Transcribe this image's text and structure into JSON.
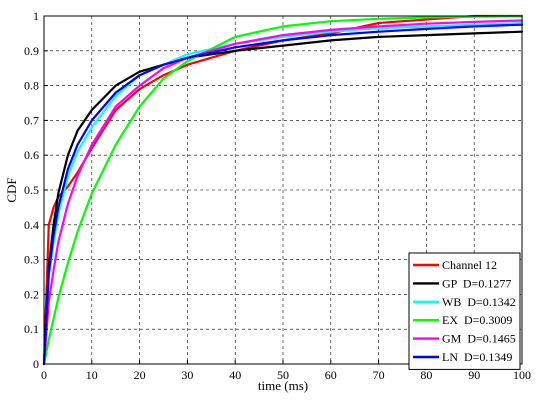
{
  "chart_data": {
    "type": "line",
    "title": "",
    "xlabel": "time (ms)",
    "ylabel": "CDF",
    "xlim": [
      0,
      100
    ],
    "ylim": [
      0,
      1
    ],
    "xticks": [
      0,
      10,
      20,
      30,
      40,
      50,
      60,
      70,
      80,
      90,
      100
    ],
    "yticks": [
      0,
      0.1,
      0.2,
      0.3,
      0.4,
      0.5,
      0.6,
      0.7,
      0.8,
      0.9,
      1
    ],
    "ytick_labels": [
      "0",
      "0.1",
      "0.2",
      "0.3",
      "0.4",
      "0.5",
      "0.6",
      "0.7",
      "0.8",
      "0.9",
      "1"
    ],
    "grid": true,
    "legend_position": "bottom-right",
    "x": [
      0,
      1,
      2,
      3,
      5,
      7,
      10,
      15,
      20,
      25,
      30,
      40,
      50,
      60,
      70,
      80,
      90,
      100
    ],
    "series": [
      {
        "name": "Channel 12",
        "color": "#ff0000",
        "values": [
          0.0,
          0.4,
          0.45,
          0.48,
          0.51,
          0.55,
          0.62,
          0.73,
          0.79,
          0.83,
          0.86,
          0.9,
          0.93,
          0.95,
          0.98,
          0.99,
          1.0,
          1.0
        ]
      },
      {
        "name": "GP  D=0.1277",
        "color": "#000000",
        "values": [
          0.0,
          0.28,
          0.4,
          0.49,
          0.6,
          0.67,
          0.73,
          0.8,
          0.84,
          0.86,
          0.88,
          0.9,
          0.915,
          0.93,
          0.94,
          0.945,
          0.95,
          0.955
        ]
      },
      {
        "name": "WB  D=0.1342",
        "color": "#00ffff",
        "values": [
          0.0,
          0.25,
          0.35,
          0.43,
          0.54,
          0.61,
          0.68,
          0.77,
          0.83,
          0.86,
          0.89,
          0.92,
          0.94,
          0.955,
          0.965,
          0.97,
          0.975,
          0.98
        ]
      },
      {
        "name": "EX  D=0.3009",
        "color": "#00ff00",
        "values": [
          0.0,
          0.07,
          0.13,
          0.19,
          0.29,
          0.38,
          0.49,
          0.63,
          0.74,
          0.82,
          0.87,
          0.94,
          0.97,
          0.985,
          0.992,
          0.996,
          0.998,
          0.999
        ]
      },
      {
        "name": "GM  D=0.1465",
        "color": "#ff00ff",
        "values": [
          0.0,
          0.18,
          0.27,
          0.35,
          0.46,
          0.54,
          0.63,
          0.74,
          0.8,
          0.85,
          0.88,
          0.92,
          0.945,
          0.96,
          0.97,
          0.978,
          0.983,
          0.987
        ]
      },
      {
        "name": "LN  D=0.1349",
        "color": "#0000ff",
        "values": [
          0.0,
          0.26,
          0.37,
          0.45,
          0.56,
          0.63,
          0.7,
          0.78,
          0.83,
          0.86,
          0.88,
          0.91,
          0.93,
          0.945,
          0.955,
          0.963,
          0.97,
          0.975
        ]
      }
    ]
  }
}
